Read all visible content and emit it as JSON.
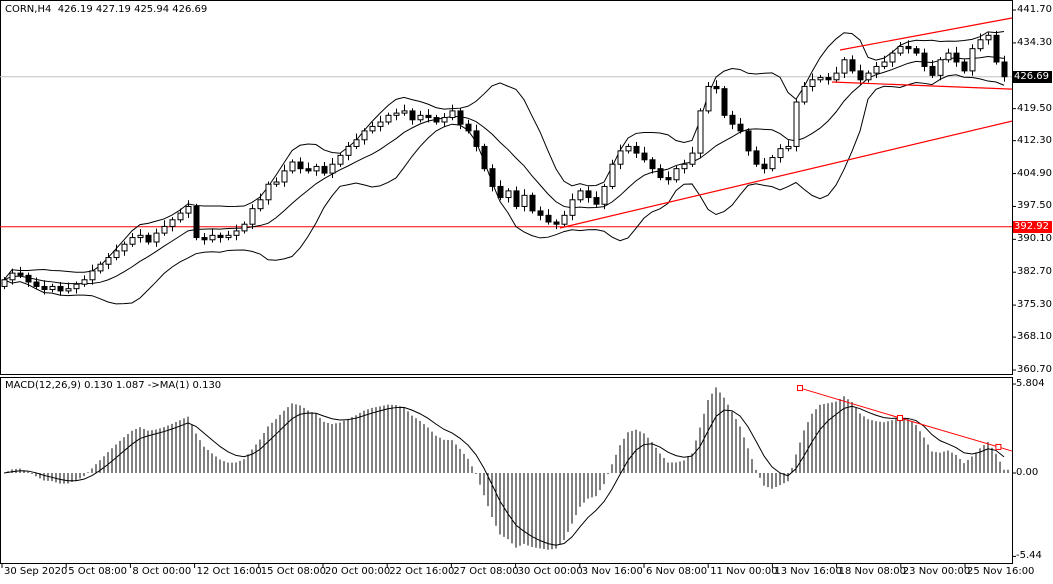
{
  "header": {
    "symbol": "CORN,H4",
    "open": "426.19",
    "high": "427.19",
    "low": "425.94",
    "close": "426.69"
  },
  "macd_header": {
    "label": "MACD(12,26,9) 0.130 1.087  ->MA(1) 0.130"
  },
  "price_axis": [
    "441.70",
    "434.30",
    "426.69",
    "419.50",
    "412.30",
    "404.90",
    "397.50",
    "392.92",
    "390.10",
    "382.70",
    "375.30",
    "368.10",
    "360.70"
  ],
  "macd_axis": [
    "5.804",
    "0.00",
    "-5.44"
  ],
  "time_axis": [
    "30 Sep 2020",
    "5 Oct 08:00",
    "8 Oct 00:00",
    "12 Oct 16:00",
    "15 Oct 08:00",
    "20 Oct 00:00",
    "22 Oct 16:00",
    "27 Oct 08:00",
    "30 Oct 00:00",
    "3 Nov 16:00",
    "6 Nov 08:00",
    "11 Nov 00:00",
    "13 Nov 16:00",
    "18 Nov 08:00",
    "23 Nov 00:00",
    "25 Nov 16:00"
  ],
  "current_price": {
    "value": "426.69",
    "color": "#000000"
  },
  "hline": {
    "value": "392.92",
    "color": "#ff0000"
  },
  "chart_data": {
    "type": "candlestick",
    "price_range": [
      360.7,
      441.7
    ],
    "macd_range": [
      -5.44,
      5.804
    ],
    "closes": [
      381,
      382.5,
      382,
      380.5,
      379.5,
      378.8,
      379.5,
      378.5,
      379,
      380,
      381,
      383,
      384.5,
      386,
      387.5,
      389,
      390.5,
      391,
      389.5,
      391.5,
      393,
      394.5,
      396,
      397.5,
      390.5,
      390,
      391,
      390.5,
      391,
      392,
      393.5,
      397,
      399,
      402.5,
      403,
      405.5,
      407.5,
      406,
      405.5,
      406.5,
      405,
      407,
      409,
      411,
      412.5,
      414.5,
      415.5,
      416.5,
      418,
      418.5,
      419,
      417,
      418,
      417.5,
      416.5,
      417.5,
      419,
      416,
      414.5,
      411,
      406,
      402,
      399.5,
      401,
      397.5,
      400,
      396.5,
      395.5,
      394,
      393.5,
      395.5,
      399,
      401,
      399.5,
      398,
      402,
      407,
      410,
      411,
      409.5,
      408,
      406,
      404,
      403.5,
      406,
      407,
      409.5,
      419,
      424.5,
      424,
      418,
      416,
      414.5,
      410,
      407,
      406,
      408.5,
      410.5,
      411,
      421,
      424.5,
      426,
      426.5,
      426,
      427.5,
      430.5,
      428,
      426,
      427.5,
      429,
      430,
      432,
      433.5,
      433,
      432,
      429,
      427,
      430.5,
      432,
      430,
      428,
      433,
      435,
      436,
      430,
      426.69
    ],
    "indicators": [
      "Bollinger Bands",
      "MACD(12,26,9)"
    ],
    "trendlines": [
      {
        "from": [
          69.5,
          392.65
        ],
        "to": [
          126,
          416.7
        ],
        "color": "#ff0000"
      },
      {
        "from": [
          104.5,
          432.7
        ],
        "to": [
          126,
          439.9
        ],
        "color": "#ff0000"
      },
      {
        "from": [
          103.5,
          425.5
        ],
        "to": [
          126,
          423.9
        ],
        "color": "#ff0000"
      }
    ],
    "macd_trendline": {
      "points": [
        [
          99.5,
          5.54
        ],
        [
          112,
          3.59
        ],
        [
          124.3,
          1.7
        ]
      ],
      "end": [
        126,
        1.43
      ],
      "color": "#ff0000"
    }
  }
}
